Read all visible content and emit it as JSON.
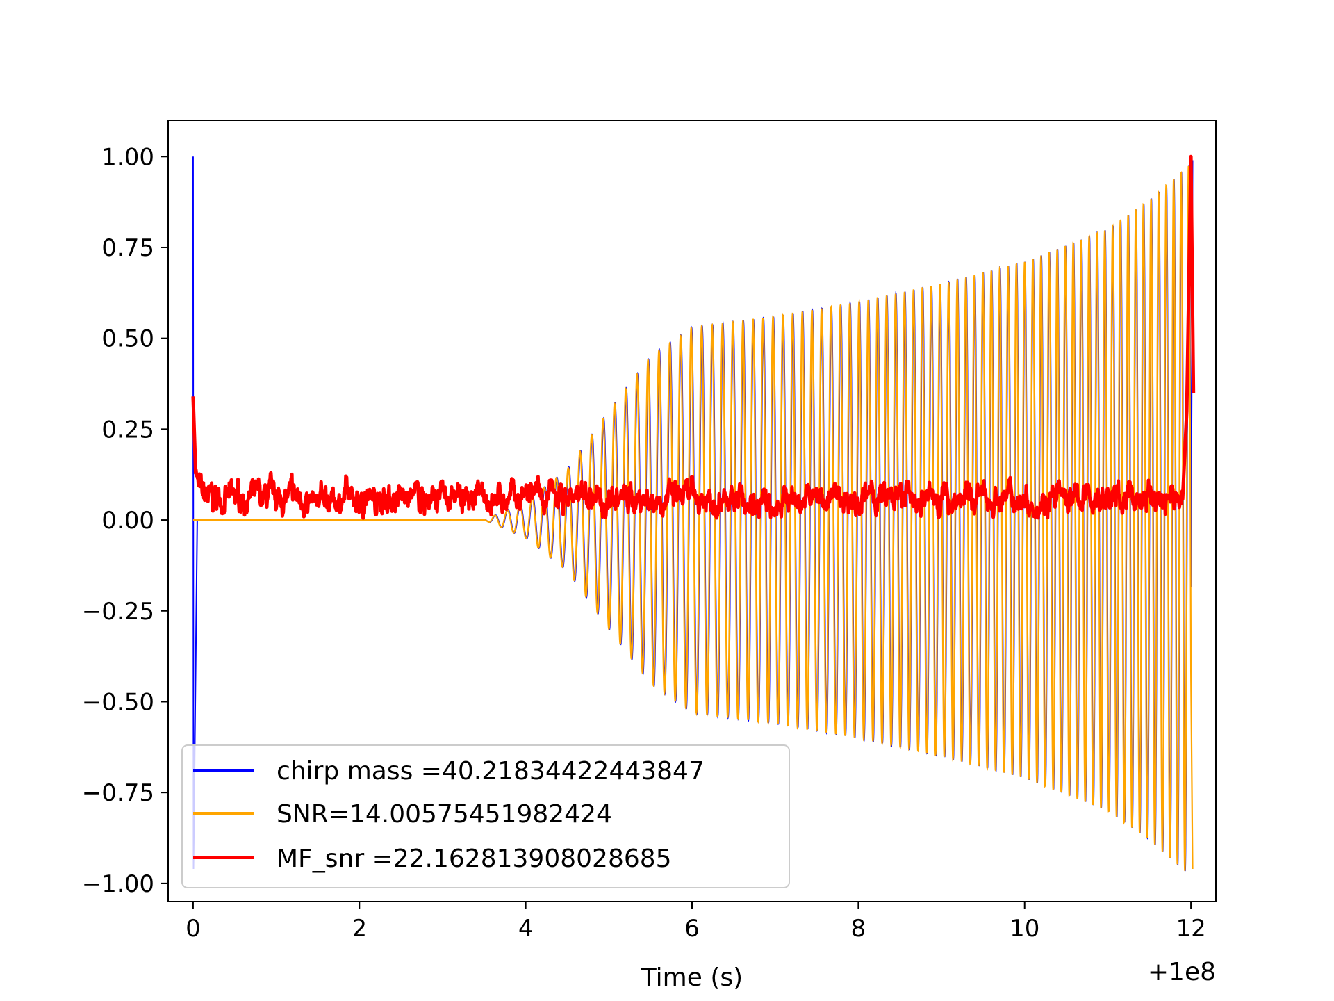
{
  "chart_data": {
    "type": "line",
    "title": "",
    "xlabel": "Time (s)",
    "ylabel": "",
    "x_offset_label": "+1e8",
    "xlim": [
      -0.3,
      12.3
    ],
    "ylim": [
      -1.05,
      1.1
    ],
    "x_ticks": [
      0,
      2,
      4,
      6,
      8,
      10,
      12
    ],
    "x_tick_labels": [
      "0",
      "2",
      "4",
      "6",
      "8",
      "10",
      "12"
    ],
    "y_ticks": [
      1.0,
      0.75,
      0.5,
      0.25,
      0.0,
      -0.25,
      -0.5,
      -0.75,
      -1.0
    ],
    "y_tick_labels": [
      "1.00",
      "0.75",
      "0.50",
      "0.25",
      "0.00",
      "−0.25",
      "−0.50",
      "−0.75",
      "−1.00"
    ],
    "grid": false,
    "legend_position": "lower-left",
    "series": [
      {
        "name": "chirp mass =40.21834422443847",
        "color": "#0000ff",
        "description_points": [
          {
            "x": 0.0,
            "y": 1.0
          },
          {
            "x": 0.0,
            "y": -0.96
          },
          {
            "x": 0.05,
            "y": 0.0
          },
          {
            "x": 3.5,
            "y": 0.0
          },
          {
            "x": 4.5,
            "y": 0.1
          },
          {
            "x": 5.5,
            "y": 0.4
          },
          {
            "x": 6.0,
            "y": 0.52
          },
          {
            "x": 8.0,
            "y": 0.6
          },
          {
            "x": 10.0,
            "y": 0.7
          },
          {
            "x": 11.5,
            "y": 0.94
          },
          {
            "x": 12.0,
            "y": 0.99
          }
        ]
      },
      {
        "name": "SNR=14.00575451982424",
        "color": "#ffa500",
        "envelope": [
          {
            "x": 0.0,
            "y": 0.0
          },
          {
            "x": 3.5,
            "y": 0.0
          },
          {
            "x": 4.0,
            "y": 0.05
          },
          {
            "x": 4.5,
            "y": 0.14
          },
          {
            "x": 5.0,
            "y": 0.3
          },
          {
            "x": 5.5,
            "y": 0.45
          },
          {
            "x": 6.0,
            "y": 0.53
          },
          {
            "x": 7.0,
            "y": 0.56
          },
          {
            "x": 8.0,
            "y": 0.6
          },
          {
            "x": 9.0,
            "y": 0.65
          },
          {
            "x": 10.0,
            "y": 0.71
          },
          {
            "x": 11.0,
            "y": 0.8
          },
          {
            "x": 11.5,
            "y": 0.88
          },
          {
            "x": 12.0,
            "y": 0.98
          }
        ]
      },
      {
        "name": "MF_snr =22.162813908028685",
        "color": "#ff0000",
        "description_points": [
          {
            "x": 0.0,
            "y": 0.34
          },
          {
            "x": 0.1,
            "y": 0.05
          },
          {
            "x": 1.0,
            "y": 0.07
          },
          {
            "x": 3.0,
            "y": 0.06
          },
          {
            "x": 5.0,
            "y": 0.06
          },
          {
            "x": 7.0,
            "y": 0.07
          },
          {
            "x": 9.0,
            "y": 0.06
          },
          {
            "x": 11.0,
            "y": 0.06
          },
          {
            "x": 11.8,
            "y": 0.1
          },
          {
            "x": 12.0,
            "y": 1.0
          },
          {
            "x": 12.05,
            "y": 0.35
          }
        ]
      }
    ]
  }
}
